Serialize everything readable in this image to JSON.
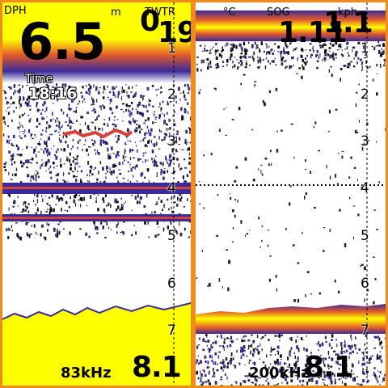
{
  "left_panel": {
    "dph_label": "DPH",
    "depth_value": "6.5",
    "depth_unit": "m",
    "twtr_label": "TWTR",
    "twtr_value": "0",
    "time_label": "Time",
    "time_value": "18:16",
    "frequency": "83kHz",
    "bottom_value": "8.1",
    "overlap_value": "19.0"
  },
  "right_panel": {
    "temp_unit": "°C",
    "sog_label": "SOG",
    "sog_value": "1.1",
    "speed_unit": "kph",
    "frequency": "200kHz",
    "bottom_value": "8.1",
    "overlap_value": "1.11"
  },
  "depth_scale": [
    "1",
    "2",
    "3",
    "4",
    "5",
    "6",
    "7"
  ],
  "colors": {
    "frame": "#f08c1e",
    "strong_return": "#ffff00",
    "mid_return": "#d8403a",
    "weak_return": "#2a2a9a",
    "background": "#ffffff"
  }
}
